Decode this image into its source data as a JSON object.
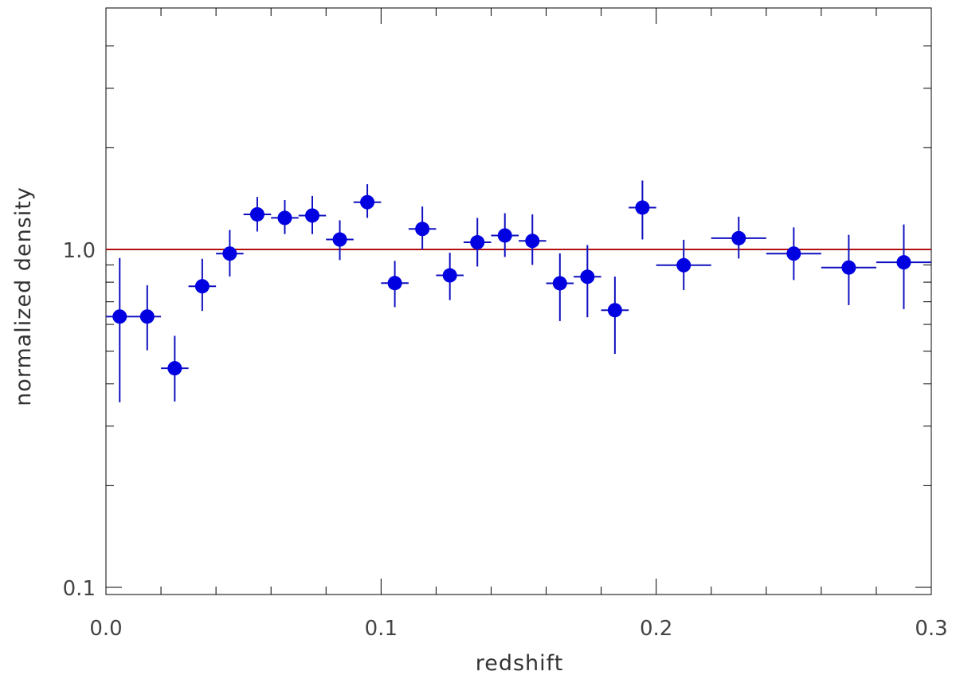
{
  "chart_data": {
    "type": "scatter",
    "xlabel": "redshift",
    "ylabel": "normalized density",
    "xlim": [
      0.0,
      0.3
    ],
    "ylim": [
      0.1,
      4.4
    ],
    "yscale": "log",
    "x_ticks": [
      "0.0",
      "0.1",
      "0.2",
      "0.3"
    ],
    "y_ticks": [
      "0.1",
      "1.0"
    ],
    "reference_line": {
      "y": 1.0,
      "color": "#b01010"
    },
    "marker_color": "#0000e0",
    "errorbar_color": "#1010c0",
    "points": [
      {
        "x": 0.005,
        "y": 0.633,
        "xerr": 0.005,
        "yerr_low": 0.28,
        "yerr_high": 0.31
      },
      {
        "x": 0.015,
        "y": 0.633,
        "xerr": 0.005,
        "yerr_low": 0.13,
        "yerr_high": 0.15
      },
      {
        "x": 0.025,
        "y": 0.445,
        "xerr": 0.005,
        "yerr_low": 0.09,
        "yerr_high": 0.11
      },
      {
        "x": 0.035,
        "y": 0.778,
        "xerr": 0.005,
        "yerr_low": 0.12,
        "yerr_high": 0.16
      },
      {
        "x": 0.045,
        "y": 0.972,
        "xerr": 0.005,
        "yerr_low": 0.14,
        "yerr_high": 0.17
      },
      {
        "x": 0.055,
        "y": 1.27,
        "xerr": 0.005,
        "yerr_low": 0.14,
        "yerr_high": 0.16
      },
      {
        "x": 0.065,
        "y": 1.24,
        "xerr": 0.005,
        "yerr_low": 0.13,
        "yerr_high": 0.16
      },
      {
        "x": 0.075,
        "y": 1.26,
        "xerr": 0.005,
        "yerr_low": 0.15,
        "yerr_high": 0.18
      },
      {
        "x": 0.085,
        "y": 1.07,
        "xerr": 0.005,
        "yerr_low": 0.14,
        "yerr_high": 0.15
      },
      {
        "x": 0.095,
        "y": 1.38,
        "xerr": 0.005,
        "yerr_low": 0.14,
        "yerr_high": 0.18
      },
      {
        "x": 0.105,
        "y": 0.795,
        "xerr": 0.005,
        "yerr_low": 0.12,
        "yerr_high": 0.13
      },
      {
        "x": 0.115,
        "y": 1.15,
        "xerr": 0.005,
        "yerr_low": 0.15,
        "yerr_high": 0.19
      },
      {
        "x": 0.125,
        "y": 0.838,
        "xerr": 0.005,
        "yerr_low": 0.13,
        "yerr_high": 0.14
      },
      {
        "x": 0.135,
        "y": 1.05,
        "xerr": 0.005,
        "yerr_low": 0.16,
        "yerr_high": 0.19
      },
      {
        "x": 0.145,
        "y": 1.1,
        "xerr": 0.005,
        "yerr_low": 0.15,
        "yerr_high": 0.18
      },
      {
        "x": 0.155,
        "y": 1.06,
        "xerr": 0.005,
        "yerr_low": 0.16,
        "yerr_high": 0.21
      },
      {
        "x": 0.165,
        "y": 0.794,
        "xerr": 0.005,
        "yerr_low": 0.18,
        "yerr_high": 0.18
      },
      {
        "x": 0.175,
        "y": 0.83,
        "xerr": 0.005,
        "yerr_low": 0.2,
        "yerr_high": 0.2
      },
      {
        "x": 0.185,
        "y": 0.661,
        "xerr": 0.005,
        "yerr_low": 0.17,
        "yerr_high": 0.17
      },
      {
        "x": 0.195,
        "y": 1.33,
        "xerr": 0.005,
        "yerr_low": 0.26,
        "yerr_high": 0.27
      },
      {
        "x": 0.21,
        "y": 0.898,
        "xerr": 0.01,
        "yerr_low": 0.14,
        "yerr_high": 0.17
      },
      {
        "x": 0.23,
        "y": 1.08,
        "xerr": 0.01,
        "yerr_low": 0.14,
        "yerr_high": 0.17
      },
      {
        "x": 0.25,
        "y": 0.972,
        "xerr": 0.01,
        "yerr_low": 0.16,
        "yerr_high": 0.19
      },
      {
        "x": 0.27,
        "y": 0.884,
        "xerr": 0.01,
        "yerr_low": 0.2,
        "yerr_high": 0.22
      },
      {
        "x": 0.29,
        "y": 0.916,
        "xerr": 0.01,
        "yerr_low": 0.25,
        "yerr_high": 0.27
      }
    ]
  }
}
